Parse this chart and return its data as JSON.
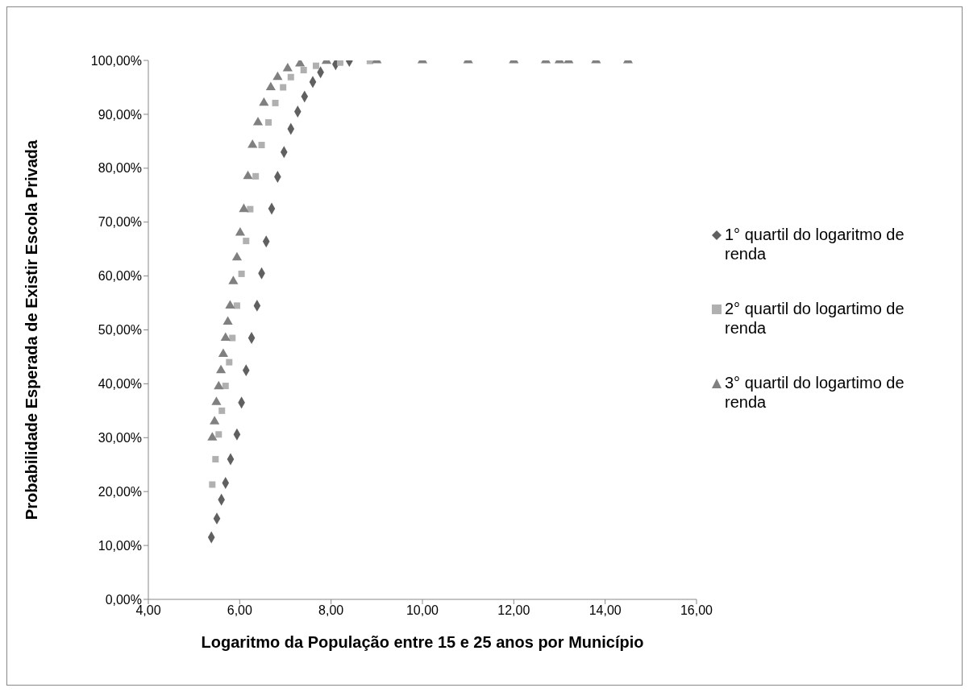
{
  "chart_data": {
    "type": "scatter",
    "xlabel": "Logaritmo da População entre 15 e 25 anos por Município",
    "ylabel": "Probabilidade Esperada de Existir Escola Privada",
    "xlim": [
      4,
      16
    ],
    "xticks": [
      {
        "value": 4,
        "label": "4,00"
      },
      {
        "value": 6,
        "label": "6,00"
      },
      {
        "value": 8,
        "label": "8,00"
      },
      {
        "value": 10,
        "label": "10,00"
      },
      {
        "value": 12,
        "label": "12,00"
      },
      {
        "value": 14,
        "label": "14,00"
      },
      {
        "value": 16,
        "label": "16,00"
      }
    ],
    "ylim": [
      0,
      100
    ],
    "yticks": [
      {
        "value": 0,
        "label": "0,00%"
      },
      {
        "value": 10,
        "label": "10,00%"
      },
      {
        "value": 20,
        "label": "20,00%"
      },
      {
        "value": 30,
        "label": "30,00%"
      },
      {
        "value": 40,
        "label": "40,00%"
      },
      {
        "value": 50,
        "label": "50,00%"
      },
      {
        "value": 60,
        "label": "60,00%"
      },
      {
        "value": 70,
        "label": "70,00%"
      },
      {
        "value": 80,
        "label": "80,00%"
      },
      {
        "value": 90,
        "label": "90,00%"
      },
      {
        "value": 100,
        "label": "100,00%"
      }
    ],
    "grid": false,
    "legend": "right",
    "series": [
      {
        "name": "1° quartil do logaritmo de renda",
        "color": "#606060",
        "marker": "diamond",
        "x": [
          5.38,
          5.5,
          5.6,
          5.69,
          5.8,
          5.94,
          6.04,
          6.14,
          6.26,
          6.38,
          6.48,
          6.58,
          6.7,
          6.83,
          6.97,
          7.12,
          7.27,
          7.42,
          7.6,
          7.77,
          8.1,
          8.4
        ],
        "values": [
          11.5,
          15,
          18.5,
          21.6,
          26,
          30.6,
          36.5,
          42.5,
          48.5,
          54.5,
          60.5,
          66.4,
          72.5,
          78.4,
          83,
          87.3,
          90.5,
          93.3,
          96,
          97.8,
          99.3,
          99.9
        ]
      },
      {
        "name": "2° quartil do logartimo de renda",
        "color": "#b0b0b0",
        "marker": "square",
        "x": [
          5.4,
          5.47,
          5.54,
          5.61,
          5.69,
          5.77,
          5.84,
          5.94,
          6.04,
          6.14,
          6.23,
          6.35,
          6.48,
          6.63,
          6.78,
          6.95,
          7.12,
          7.4,
          7.67,
          8.2,
          8.85
        ],
        "values": [
          21.3,
          26,
          30.6,
          35,
          39.6,
          44,
          48.5,
          54.5,
          60.4,
          66.5,
          72.4,
          78.5,
          84.3,
          88.5,
          92.1,
          95,
          96.9,
          98.2,
          99,
          99.6,
          99.9
        ]
      },
      {
        "name": "3° quartil do logartimo de renda",
        "color": "#808080",
        "marker": "triangle",
        "x": [
          5.4,
          5.45,
          5.49,
          5.54,
          5.59,
          5.64,
          5.69,
          5.74,
          5.79,
          5.86,
          5.94,
          6.01,
          6.09,
          6.18,
          6.28,
          6.4,
          6.53,
          6.68,
          6.83,
          7.05,
          7.32,
          7.9,
          9,
          10,
          11,
          12,
          12.7,
          13,
          13.2,
          13.8,
          14.5
        ],
        "values": [
          30,
          33,
          36.6,
          39.5,
          42.5,
          45.5,
          48.5,
          51.5,
          54.5,
          59,
          63.4,
          68,
          72.4,
          78.5,
          84.3,
          88.5,
          92.1,
          95,
          96.9,
          98.5,
          99.4,
          99.9,
          100,
          100,
          100,
          100,
          100,
          100,
          100,
          100,
          100
        ]
      }
    ]
  }
}
